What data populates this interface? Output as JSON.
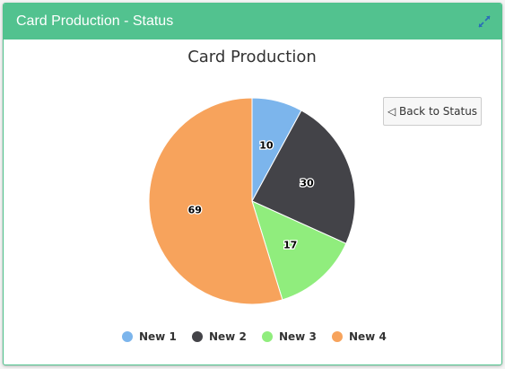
{
  "panel": {
    "title": "Card Production - Status",
    "header_color": "#52c28f",
    "expand_icon": "expand-arrows-icon"
  },
  "back_button": {
    "icon": "◁",
    "label": "Back to Status"
  },
  "chart_data": {
    "type": "pie",
    "title": "Card Production",
    "categories": [
      "New 1",
      "New 2",
      "New 3",
      "New 4"
    ],
    "values": [
      10,
      30,
      17,
      69
    ],
    "colors": [
      "#7cb5ec",
      "#434348",
      "#90ed7d",
      "#f7a35c"
    ],
    "legend_position": "bottom-center"
  }
}
